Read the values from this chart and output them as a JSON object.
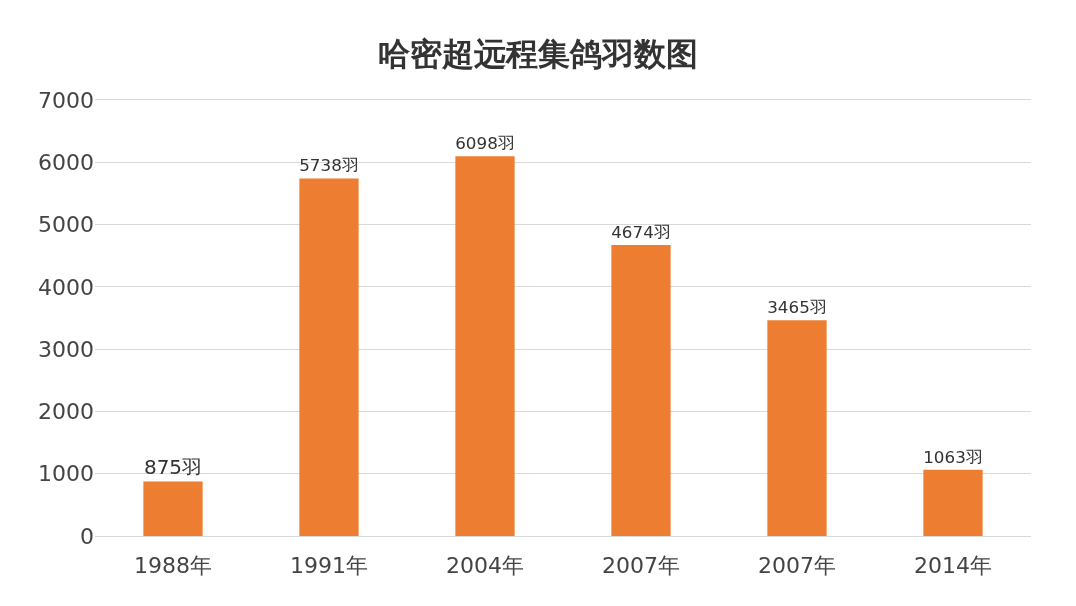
{
  "chart_data": {
    "type": "bar",
    "title": "哈密超远程集鸽羽数图",
    "categories": [
      "1988年",
      "1991年",
      "2004年",
      "2007年",
      "2007年",
      "2014年"
    ],
    "values": [
      875,
      5738,
      6098,
      4674,
      3465,
      1063
    ],
    "value_labels": [
      "875羽",
      "5738羽",
      "6098羽",
      "4674羽",
      "3465羽",
      "1063羽"
    ],
    "color": "#ed7d31",
    "ylim": [
      0,
      7000
    ],
    "yticks": [
      0,
      1000,
      2000,
      3000,
      4000,
      5000,
      6000,
      7000
    ],
    "grid": "y"
  }
}
